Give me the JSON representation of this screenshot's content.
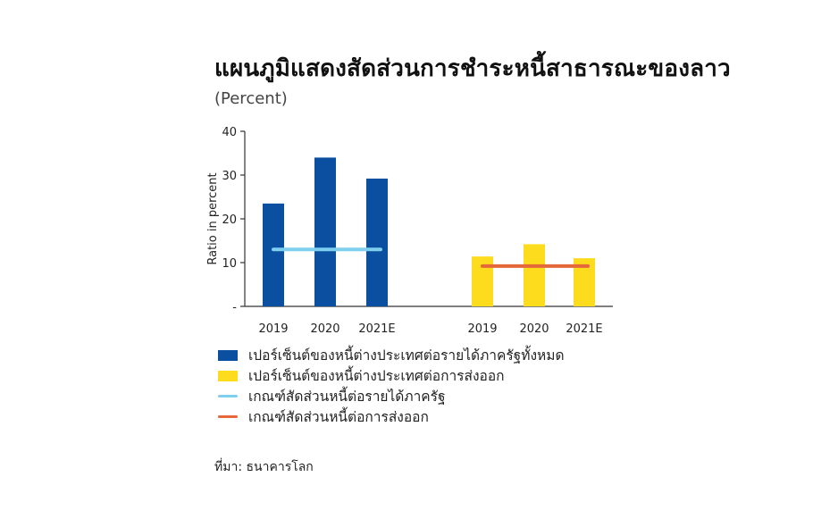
{
  "title": "แผนภูมิแสดงสัดส่วนการชำระหนี้สาธารณะของลาว",
  "unit": "(Percent)",
  "source": "ที่มา: ธนาคารโลก",
  "colors": {
    "external_debt_to_revenue": "#0a4fa0",
    "external_debt_to_exports": "#fcdc1c",
    "threshold_revenue": "#7fcfef",
    "threshold_exports": "#e5683a",
    "axis": "#333333"
  },
  "legend": [
    {
      "label": "เปอร์เซ็นต์ของหนี้ต่างประเทศต่อรายได้ภาครัฐทั้งหมด",
      "kind": "bar",
      "color": "#0a4fa0"
    },
    {
      "label": "เปอร์เซ็นต์ของหนี้ต่างประเทศต่อการส่งออก",
      "kind": "bar",
      "color": "#fcdc1c"
    },
    {
      "label": "เกณฑ์สัดส่วนหนี้ต่อรายได้ภาครัฐ",
      "kind": "line",
      "color": "#7fcfef"
    },
    {
      "label": "เกณฑ์สัดส่วนหนี้ต่อการส่งออก",
      "kind": "line",
      "color": "#e5683a"
    }
  ],
  "chart_data": {
    "type": "bar",
    "title": "แผนภูมิแสดงสัดส่วนการชำระหนี้สาธารณะของลาว",
    "subtitle": "(Percent)",
    "xlabel": "",
    "ylabel": "Ratio in percent",
    "ylim": [
      0,
      40
    ],
    "yticks": [
      "-",
      "10",
      "20",
      "30",
      "40"
    ],
    "grid": false,
    "legend_position": "bottom",
    "groups": [
      {
        "series": "เปอร์เซ็นต์ของหนี้ต่างประเทศต่อรายได้ภาครัฐทั้งหมด",
        "color": "#0a4fa0",
        "categories": [
          "2019",
          "2020",
          "2021E"
        ],
        "values": [
          23.5,
          34.0,
          29.2
        ],
        "threshold": {
          "name": "เกณฑ์สัดส่วนหนี้ต่อรายได้ภาครัฐ",
          "value": 13.0,
          "color": "#7fcfef"
        }
      },
      {
        "series": "เปอร์เซ็นต์ของหนี้ต่างประเทศต่อการส่งออก",
        "color": "#fcdc1c",
        "categories": [
          "2019",
          "2020",
          "2021E"
        ],
        "values": [
          11.4,
          14.2,
          11.0
        ],
        "threshold": {
          "name": "เกณฑ์สัดส่วนหนี้ต่อการส่งออก",
          "value": 9.2,
          "color": "#e5683a"
        }
      }
    ]
  }
}
